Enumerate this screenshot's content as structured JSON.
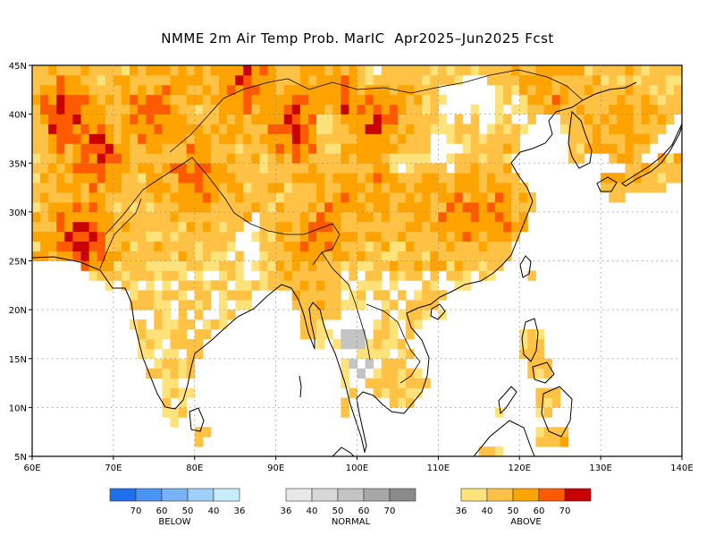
{
  "title": "NMME 2m Air Temp Prob. MarIC  Apr2025–Jun2025 Fcst",
  "map": {
    "lon_range": [
      60,
      140
    ],
    "lat_range": [
      5,
      45
    ],
    "x_ticks": [
      "60E",
      "70E",
      "80E",
      "90E",
      "100E",
      "110E",
      "120E",
      "130E",
      "140E"
    ],
    "y_ticks": [
      "5N",
      "10N",
      "15N",
      "20N",
      "25N",
      "30N",
      "35N",
      "40N",
      "45N"
    ],
    "gridlines": "dotted"
  },
  "legends": [
    {
      "name": "BELOW",
      "colors": [
        "#1f6ff0",
        "#4a93f2",
        "#78b3f5",
        "#9fd0f7",
        "#c7ecfb"
      ],
      "tick_labels": [
        "70",
        "60",
        "50",
        "40",
        "36"
      ]
    },
    {
      "name": "NORMAL",
      "colors": [
        "#e8e8e8",
        "#d8d8d8",
        "#c4c4c4",
        "#a8a8a8",
        "#8a8a8a"
      ],
      "tick_labels": [
        "36",
        "40",
        "50",
        "60",
        "70"
      ]
    },
    {
      "name": "ABOVE",
      "colors": [
        "#ffe27a",
        "#ffc245",
        "#ffa300",
        "#ff5a00",
        "#c80000"
      ],
      "tick_labels": [
        "36",
        "40",
        "50",
        "60",
        "70"
      ]
    }
  ]
}
